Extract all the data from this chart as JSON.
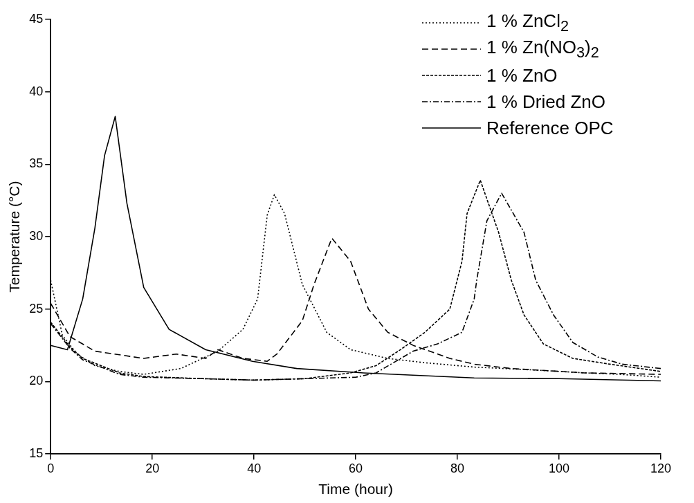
{
  "chart_data": {
    "type": "line",
    "xlabel": "Time (hour)",
    "ylabel": "Temperature (°C)",
    "xlim": [
      0,
      120
    ],
    "xticks": [
      0,
      20,
      40,
      60,
      80,
      100,
      120
    ],
    "ylim": [
      15,
      45
    ],
    "yticks": [
      15,
      20,
      25,
      30,
      35,
      40,
      45
    ],
    "grid": false,
    "legend": "top right",
    "marker": "none",
    "series": [
      {
        "name": "1 % ZnCl$_{2}$",
        "color": "#000000",
        "line_style": "dotted",
        "x": [
          0,
          2.3,
          5.2,
          8.7,
          13.5,
          18.3,
          25.6,
          32.9,
          37.8,
          40.7,
          42.6,
          44,
          46,
          49.5,
          54.3,
          59,
          66.3,
          73.6,
          83.3,
          95,
          105,
          112,
          120
        ],
        "values": [
          27,
          23.2,
          21.9,
          21.1,
          20.7,
          20.5,
          20.9,
          22.1,
          23.6,
          25.7,
          31.5,
          32.9,
          31.6,
          26.7,
          23.4,
          22.2,
          21.6,
          21.3,
          21,
          20.8,
          20.6,
          20.5,
          20.3
        ]
      },
      {
        "name": "1 % Zn(NO$_{3}$)$_{2}$",
        "color": "#000000",
        "line_style": "dashed",
        "x": [
          0,
          3.8,
          8.7,
          18.3,
          24.7,
          30.5,
          32.9,
          37.8,
          42.6,
          44.5,
          49.5,
          51.8,
          55.3,
          59,
          62.5,
          66.3,
          71.3,
          78.5,
          83.3,
          90.6,
          105,
          120
        ],
        "values": [
          25.4,
          23.1,
          22.1,
          21.6,
          21.9,
          21.6,
          22.2,
          21.6,
          21.4,
          21.9,
          24.2,
          26.7,
          29.9,
          28.3,
          25,
          23.4,
          22.5,
          21.6,
          21.2,
          20.9,
          20.6,
          20.5
        ]
      },
      {
        "name": "1 % ZnO",
        "color": "#000000",
        "line_style": "shortdashed",
        "x": [
          0,
          3.8,
          6.3,
          13.5,
          18.3,
          30,
          40,
          50,
          59,
          64,
          68.8,
          73.6,
          78.5,
          80.9,
          81.9,
          84.5,
          88.1,
          90.6,
          93.1,
          96.9,
          102.7,
          110,
          120
        ],
        "values": [
          24.1,
          22.4,
          21.6,
          20.6,
          20.35,
          20.2,
          20.1,
          20.2,
          20.6,
          21.1,
          22.2,
          23.4,
          25,
          28.3,
          31.6,
          33.9,
          30.3,
          27,
          24.6,
          22.6,
          21.6,
          21.2,
          20.7
        ]
      },
      {
        "name": "1 % Dried ZnO",
        "color": "#000000",
        "line_style": "dashdot",
        "x": [
          0,
          3.8,
          6.3,
          13.5,
          18.3,
          30,
          40,
          50,
          60,
          64,
          71.3,
          76.1,
          80.9,
          83.3,
          83.8,
          85.8,
          88.7,
          93.1,
          95.4,
          98.9,
          102.7,
          107.6,
          112.4,
          120
        ],
        "values": [
          24,
          22.3,
          21.5,
          20.5,
          20.3,
          20.2,
          20.1,
          20.2,
          20.3,
          20.6,
          22.1,
          22.6,
          23.4,
          25.7,
          27,
          31.1,
          33,
          30.3,
          27,
          24.6,
          22.7,
          21.7,
          21.2,
          20.9
        ]
      },
      {
        "name": "Reference OPC",
        "color": "#000000",
        "line_style": "solid",
        "x": [
          0,
          3.3,
          6.3,
          8.7,
          10.6,
          12.7,
          15,
          18.3,
          23.3,
          30.5,
          39.7,
          48.4,
          61.5,
          83.3,
          100,
          120
        ],
        "values": [
          22.5,
          22.2,
          25.7,
          30.6,
          35.6,
          38.3,
          32.3,
          26.5,
          23.6,
          22.2,
          21.4,
          20.9,
          20.6,
          20.25,
          20.2,
          20.05
        ]
      }
    ]
  }
}
